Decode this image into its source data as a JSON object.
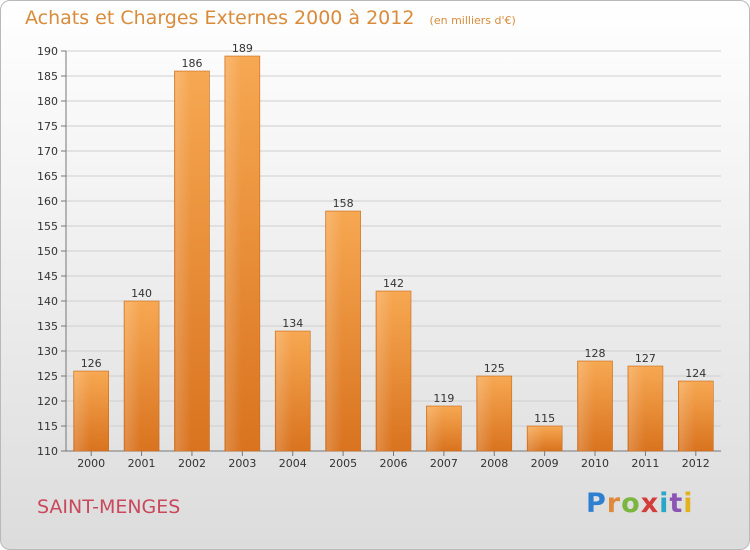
{
  "chart_data": {
    "type": "bar",
    "title": "Achats et Charges Externes 2000 à 2012",
    "subtitle": "(en milliers d'€)",
    "categories": [
      "2000",
      "2001",
      "2002",
      "2003",
      "2004",
      "2005",
      "2006",
      "2007",
      "2008",
      "2009",
      "2010",
      "2011",
      "2012"
    ],
    "values": [
      126,
      140,
      186,
      189,
      134,
      158,
      142,
      119,
      125,
      115,
      128,
      127,
      124
    ],
    "ylim": [
      110,
      190
    ],
    "yticks": [
      110,
      115,
      120,
      125,
      130,
      135,
      140,
      145,
      150,
      155,
      160,
      165,
      170,
      175,
      180,
      185,
      190
    ],
    "grid": true,
    "bar_color": "#f0963e"
  },
  "commune": "SAINT-MENGES",
  "logo": {
    "letters": [
      "P",
      "r",
      "o",
      "x",
      "i",
      "t",
      "i"
    ]
  }
}
